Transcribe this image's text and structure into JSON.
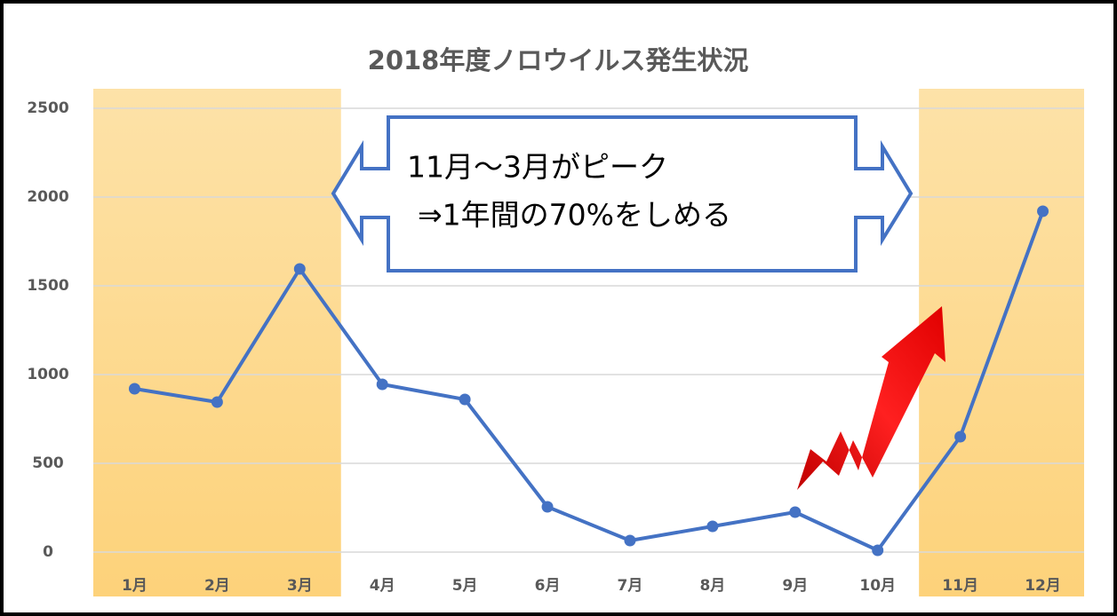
{
  "chart_data": {
    "type": "line",
    "title": "2018年度ノロウイルス発生状況",
    "categories": [
      "1月",
      "2月",
      "3月",
      "4月",
      "5月",
      "6月",
      "7月",
      "8月",
      "9月",
      "10月",
      "11月",
      "12月"
    ],
    "series": [
      {
        "color": "#4472c4",
        "values": [
          920,
          845,
          1595,
          945,
          860,
          255,
          65,
          145,
          225,
          10,
          650,
          1920
        ]
      }
    ],
    "ylim": [
      0,
      2500
    ],
    "yticks": [
      0,
      500,
      1000,
      1500,
      2000,
      2500
    ],
    "grid": true,
    "annotations": [
      "11月～3月がピーク",
      "⇒1年間の70%をしめる"
    ]
  }
}
